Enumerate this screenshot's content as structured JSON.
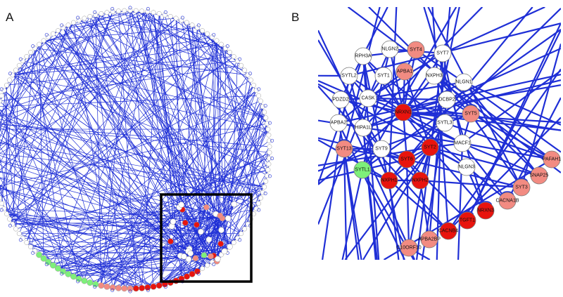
{
  "panels": {
    "a": {
      "letter": "A"
    },
    "b": {
      "letter": "B"
    }
  },
  "colors": {
    "edge": "#1f2fd6",
    "neutral": "#ffffff",
    "light_red": "#f28b82",
    "red": "#e8140e",
    "green": "#7ef07a",
    "ring_outline": "#9a9a9a",
    "zoom_box": "#000000"
  },
  "network_b": {
    "nodes": [
      {
        "label": "RPH3A",
        "color": "neutral"
      },
      {
        "label": "NLGN2",
        "color": "neutral"
      },
      {
        "label": "SYT4",
        "color": "light_red"
      },
      {
        "label": "SYT7",
        "color": "neutral"
      },
      {
        "label": "SYTL2",
        "color": "neutral"
      },
      {
        "label": "SYT1",
        "color": "neutral"
      },
      {
        "label": "APBA1",
        "color": "light_red"
      },
      {
        "label": "NXPH3",
        "color": "neutral"
      },
      {
        "label": "NLGN1",
        "color": "neutral"
      },
      {
        "label": "PDZD2",
        "color": "neutral"
      },
      {
        "label": "CASK",
        "color": "neutral"
      },
      {
        "label": "DCBP2",
        "color": "neutral"
      },
      {
        "label": "NRXN1",
        "color": "red"
      },
      {
        "label": "SYT5",
        "color": "light_red"
      },
      {
        "label": "APBA2",
        "color": "neutral"
      },
      {
        "label": "HIPA1L",
        "color": "neutral"
      },
      {
        "label": "SYTL3",
        "color": "neutral"
      },
      {
        "label": "MACF1",
        "color": "neutral"
      },
      {
        "label": "SYT13",
        "color": "light_red"
      },
      {
        "label": "SYT9",
        "color": "neutral"
      },
      {
        "label": "SYT2",
        "color": "red"
      },
      {
        "label": "SYT6",
        "color": "red"
      },
      {
        "label": "NLGN3",
        "color": "neutral"
      },
      {
        "label": "SYTL1",
        "color": "green"
      },
      {
        "label": "NXPH1",
        "color": "red"
      },
      {
        "label": "NXPH2",
        "color": "red"
      },
      {
        "label": "PAFAH1",
        "color": "light_red"
      },
      {
        "label": "SNAP25",
        "color": "light_red"
      },
      {
        "label": "SYT3",
        "color": "light_red"
      },
      {
        "label": "CACNA1B",
        "color": "light_red"
      },
      {
        "label": "NRXN3",
        "color": "red"
      },
      {
        "label": "TGFT1",
        "color": "red"
      },
      {
        "label": "CACNB4",
        "color": "red"
      },
      {
        "label": "APBA2BP",
        "color": "light_red"
      },
      {
        "label": "C10ORF10",
        "color": "light_red"
      }
    ]
  }
}
